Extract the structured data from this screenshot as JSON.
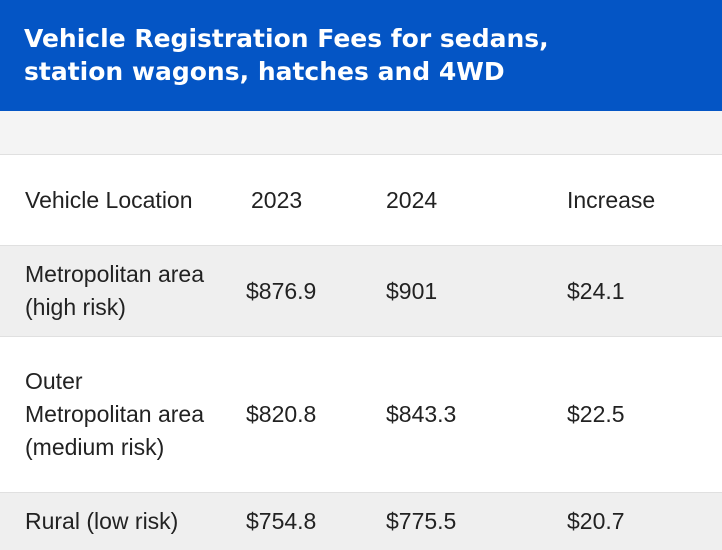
{
  "title": "Vehicle Registration Fees for sedans, station wagons, hatches and 4WD",
  "table": {
    "headers": {
      "location": "Vehicle Location",
      "y2023": "2023",
      "y2024": "2024",
      "increase": "Increase"
    },
    "rows": [
      {
        "location": "Metropolitan area (high risk)",
        "y2023": "$876.9",
        "y2024": "$901",
        "increase": "$24.1"
      },
      {
        "location": "Outer Metropolitan area (medium risk)",
        "y2023": "$820.8",
        "y2024": "$843.3",
        "increase": "$22.5"
      },
      {
        "location": "Rural (low risk)",
        "y2023": "$754.8",
        "y2024": "$775.5",
        "increase": "$20.7"
      }
    ]
  },
  "colors": {
    "title_background": "#0455c5",
    "title_text": "#ffffff",
    "striped_row": "#efefef"
  }
}
